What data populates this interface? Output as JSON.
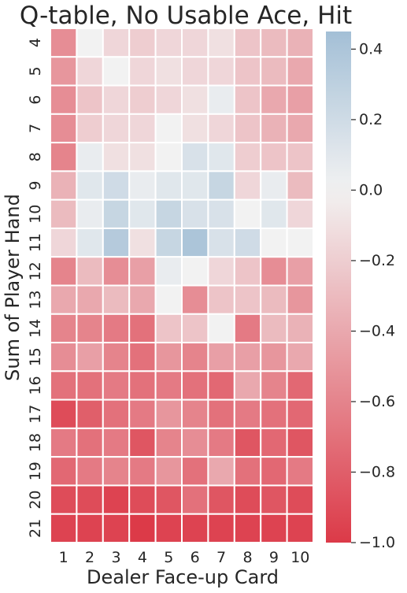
{
  "chart_data": {
    "type": "heatmap",
    "title": "Q-table, No Usable Ace, Hit",
    "xlabel": "Dealer Face-up Card",
    "ylabel": "Sum of Player Hand",
    "x_categories": [
      "1",
      "2",
      "3",
      "4",
      "5",
      "6",
      "7",
      "8",
      "9",
      "10"
    ],
    "y_categories": [
      "4",
      "5",
      "6",
      "7",
      "8",
      "9",
      "10",
      "11",
      "12",
      "13",
      "14",
      "15",
      "16",
      "17",
      "18",
      "19",
      "20",
      "21"
    ],
    "values": [
      [
        -0.55,
        0.0,
        -0.15,
        -0.2,
        -0.15,
        -0.15,
        -0.1,
        -0.25,
        -0.3,
        -0.35
      ],
      [
        -0.5,
        -0.15,
        0.0,
        -0.15,
        -0.1,
        -0.15,
        -0.15,
        -0.25,
        -0.3,
        -0.4
      ],
      [
        -0.55,
        -0.25,
        -0.15,
        -0.2,
        -0.15,
        -0.1,
        0.05,
        -0.25,
        -0.4,
        -0.45
      ],
      [
        -0.55,
        -0.2,
        -0.15,
        -0.15,
        0.0,
        -0.1,
        -0.15,
        -0.25,
        -0.35,
        -0.4
      ],
      [
        -0.6,
        0.05,
        -0.1,
        -0.1,
        0.0,
        0.15,
        0.1,
        -0.2,
        -0.25,
        -0.25
      ],
      [
        -0.35,
        0.1,
        0.2,
        0.05,
        0.1,
        0.1,
        0.25,
        -0.15,
        0.05,
        -0.3
      ],
      [
        -0.3,
        0.05,
        0.25,
        0.1,
        0.25,
        0.15,
        0.15,
        0.0,
        0.1,
        -0.15
      ],
      [
        -0.15,
        0.1,
        0.35,
        -0.1,
        0.25,
        0.4,
        0.15,
        0.2,
        0.0,
        0.0
      ],
      [
        -0.6,
        -0.3,
        -0.55,
        -0.45,
        0.05,
        0.0,
        -0.15,
        -0.25,
        -0.55,
        -0.45
      ],
      [
        -0.4,
        -0.4,
        -0.3,
        -0.4,
        0.0,
        -0.55,
        -0.25,
        -0.25,
        -0.3,
        -0.5
      ],
      [
        -0.6,
        -0.6,
        -0.65,
        -0.7,
        -0.25,
        -0.25,
        0.0,
        -0.65,
        -0.3,
        -0.35
      ],
      [
        -0.55,
        -0.45,
        -0.6,
        -0.7,
        -0.5,
        -0.6,
        -0.45,
        -0.45,
        -0.5,
        -0.4
      ],
      [
        -0.7,
        -0.7,
        -0.65,
        -0.7,
        -0.65,
        -0.7,
        -0.75,
        -0.4,
        -0.6,
        -0.75
      ],
      [
        -0.9,
        -0.8,
        -0.7,
        -0.65,
        -0.5,
        -0.6,
        -0.7,
        -0.65,
        -0.7,
        -0.75
      ],
      [
        -0.65,
        -0.7,
        -0.65,
        -0.85,
        -0.6,
        -0.55,
        -0.65,
        -0.85,
        -0.75,
        -0.85
      ],
      [
        -0.75,
        -0.65,
        -0.6,
        -0.65,
        -0.5,
        -0.7,
        -0.4,
        -0.7,
        -0.75,
        -0.65
      ],
      [
        -0.9,
        -0.9,
        -0.95,
        -0.9,
        -0.85,
        -0.7,
        -0.85,
        -0.9,
        -0.85,
        -0.9
      ],
      [
        -0.95,
        -0.95,
        -0.95,
        -1.0,
        -0.95,
        -0.95,
        -0.95,
        -0.95,
        -0.95,
        -0.95
      ]
    ],
    "colorbar": {
      "range": [
        -1.0,
        0.45
      ],
      "ticks": [
        -1.0,
        -0.8,
        -0.6,
        -0.4,
        -0.2,
        0.0,
        0.2,
        0.4
      ],
      "tick_labels": [
        "−1.0",
        "−0.8",
        "−0.6",
        "−0.4",
        "−0.2",
        "0.0",
        "0.2",
        "0.4"
      ]
    },
    "colors": {
      "low": "#dc3a48",
      "mid": "#f2f2f2",
      "high": "#a3bfd6"
    },
    "grid": true
  }
}
